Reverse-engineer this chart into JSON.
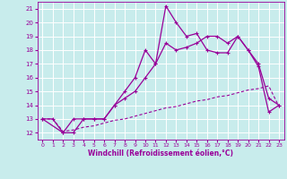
{
  "xlabel": "Windchill (Refroidissement éolien,°C)",
  "background_color": "#c8ecec",
  "grid_color": "#aacccc",
  "line_color": "#990099",
  "xlim": [
    -0.5,
    23.5
  ],
  "ylim": [
    11.5,
    21.5
  ],
  "yticks": [
    12,
    13,
    14,
    15,
    16,
    17,
    18,
    19,
    20,
    21
  ],
  "xticks": [
    0,
    1,
    2,
    3,
    4,
    5,
    6,
    7,
    8,
    9,
    10,
    11,
    12,
    13,
    14,
    15,
    16,
    17,
    18,
    19,
    20,
    21,
    22,
    23
  ],
  "line1_x": [
    0,
    1,
    2,
    3,
    4,
    5,
    6,
    7,
    8,
    9,
    10,
    11,
    12,
    13,
    14,
    15,
    16,
    17,
    18,
    19,
    20,
    21,
    22,
    23
  ],
  "line1_y": [
    13.0,
    13.0,
    12.0,
    13.0,
    13.0,
    13.0,
    13.0,
    14.0,
    15.0,
    16.0,
    18.0,
    17.0,
    21.2,
    20.0,
    19.0,
    19.2,
    18.0,
    17.8,
    17.8,
    19.0,
    18.0,
    16.8,
    13.5,
    14.0
  ],
  "line2_x": [
    0,
    2,
    3,
    4,
    5,
    6,
    7,
    8,
    9,
    10,
    11,
    12,
    13,
    14,
    15,
    16,
    17,
    18,
    19,
    20,
    21,
    22,
    23
  ],
  "line2_y": [
    13.0,
    12.0,
    12.0,
    13.0,
    13.0,
    13.0,
    14.0,
    14.5,
    15.0,
    16.0,
    17.0,
    18.5,
    18.0,
    18.2,
    18.5,
    19.0,
    19.0,
    18.5,
    19.0,
    18.0,
    17.0,
    14.5,
    14.0
  ],
  "line3_x": [
    0,
    1,
    2,
    3,
    4,
    5,
    6,
    7,
    8,
    9,
    10,
    11,
    12,
    13,
    14,
    15,
    16,
    17,
    18,
    19,
    20,
    21,
    22,
    23
  ],
  "line3_y": [
    13.0,
    13.0,
    12.1,
    12.2,
    12.4,
    12.5,
    12.7,
    12.9,
    13.0,
    13.2,
    13.4,
    13.6,
    13.8,
    13.9,
    14.1,
    14.3,
    14.4,
    14.6,
    14.7,
    14.9,
    15.1,
    15.2,
    15.4,
    13.9
  ]
}
